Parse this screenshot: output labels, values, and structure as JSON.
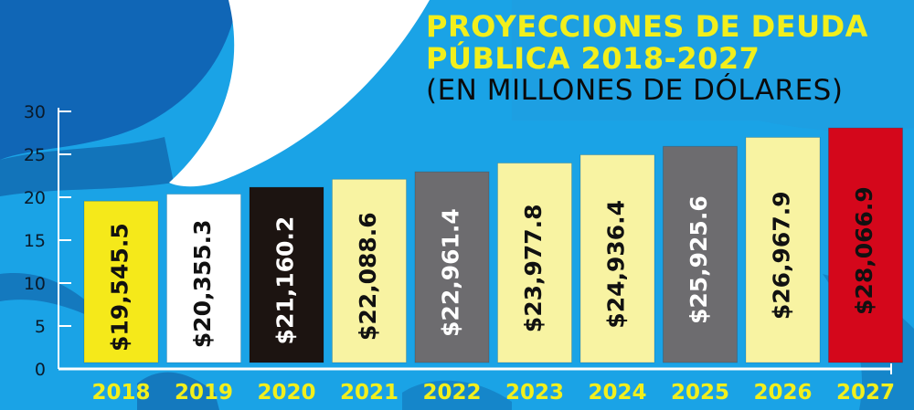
{
  "colors": {
    "background": "#1aa3e6",
    "title": "#f2ef1c",
    "subtitle": "#0a0a0a",
    "axis": "#ffffff",
    "x_label": "#f2ef1c"
  },
  "chart_data": {
    "type": "bar",
    "title_lines": [
      "PROYECCIONES DE DEUDA",
      "PÚBLICA 2018-2027"
    ],
    "subtitle": "(EN MILLONES DE DÓLARES)",
    "categories": [
      "2018",
      "2019",
      "2020",
      "2021",
      "2022",
      "2023",
      "2024",
      "2025",
      "2026",
      "2027"
    ],
    "values": [
      19.5455,
      20.3553,
      21.1602,
      22.0886,
      22.9614,
      23.9778,
      24.9364,
      25.9256,
      26.9679,
      28.0669
    ],
    "labels": [
      "$19,545.5",
      "$20,355.3",
      "$21,160.2",
      "$22,088.6",
      "$22,961.4",
      "$23,977.8",
      "$24,936.4",
      "$25,925.6",
      "$26,967.9",
      "$28,066.9"
    ],
    "bar_colors": [
      "#f5e91a",
      "#ffffff",
      "#1c1411",
      "#f8f3a2",
      "#6d6c6f",
      "#f8f3a2",
      "#f8f3a2",
      "#6d6c6f",
      "#f8f3a2",
      "#d4071b"
    ],
    "label_colors": [
      "#111111",
      "#111111",
      "#ffffff",
      "#111111",
      "#ffffff",
      "#111111",
      "#111111",
      "#ffffff",
      "#111111",
      "#111111"
    ],
    "yticks": [
      0,
      5,
      10,
      15,
      20,
      25,
      30
    ],
    "ylim": [
      0,
      30
    ],
    "grid": false,
    "legend": "none",
    "xlabel": "",
    "ylabel": ""
  }
}
